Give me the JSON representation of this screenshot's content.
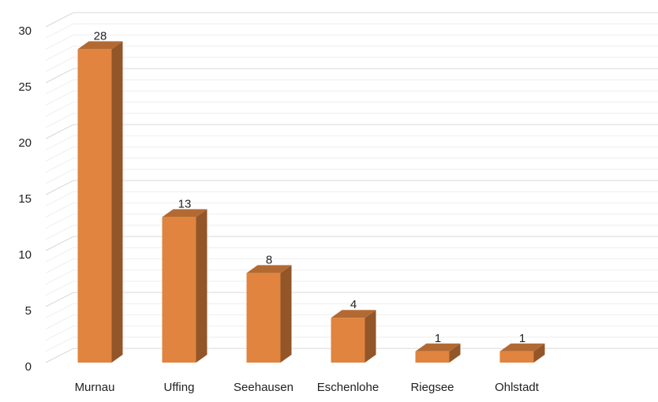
{
  "chart_data": {
    "type": "bar",
    "categories": [
      "Murnau",
      "Uffing",
      "Seehausen",
      "Eschenlohe",
      "Riegsee",
      "Ohlstadt"
    ],
    "values": [
      28,
      13,
      8,
      4,
      1,
      1
    ],
    "color": "#e0843f",
    "ylim": [
      0,
      30
    ],
    "yticks": [
      0,
      5,
      10,
      15,
      20,
      25,
      30
    ],
    "grid": true
  }
}
